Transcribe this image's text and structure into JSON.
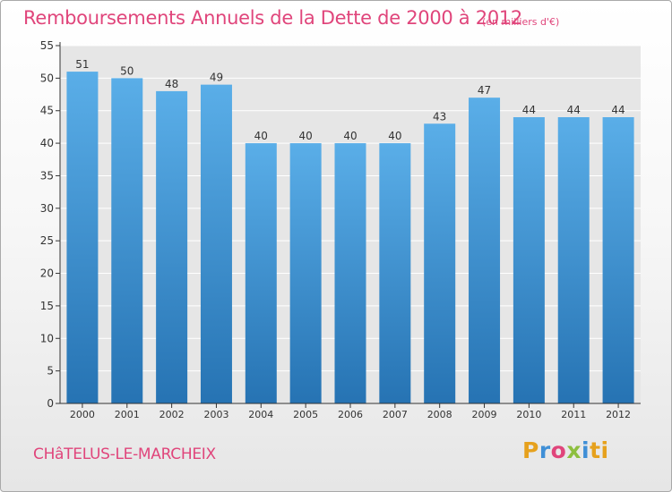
{
  "header": {
    "title": "Remboursements Annuels de la Dette de 2000 à 2012",
    "subtitle": "(en milliers d'€)"
  },
  "footer": {
    "commune": "CHâTELUS-LE-MARCHEIX",
    "logo_letters": [
      "P",
      "r",
      "o",
      "x",
      "i",
      "ti"
    ]
  },
  "colors": {
    "title": "#e0457b",
    "bar_top": "#5aaee8",
    "bar_bottom": "#2673b3",
    "grid": "#ffffff",
    "plot_background": "#e6e6e6"
  },
  "chart_data": {
    "type": "bar",
    "categories": [
      "2000",
      "2001",
      "2002",
      "2003",
      "2004",
      "2005",
      "2006",
      "2007",
      "2008",
      "2009",
      "2010",
      "2011",
      "2012"
    ],
    "values": [
      51,
      50,
      48,
      49,
      40,
      40,
      40,
      40,
      43,
      47,
      44,
      44,
      44
    ],
    "ylim": [
      0,
      55
    ],
    "yticks": [
      0,
      5,
      10,
      15,
      20,
      25,
      30,
      35,
      40,
      45,
      50,
      55
    ],
    "grid": true,
    "data_labels": true
  }
}
